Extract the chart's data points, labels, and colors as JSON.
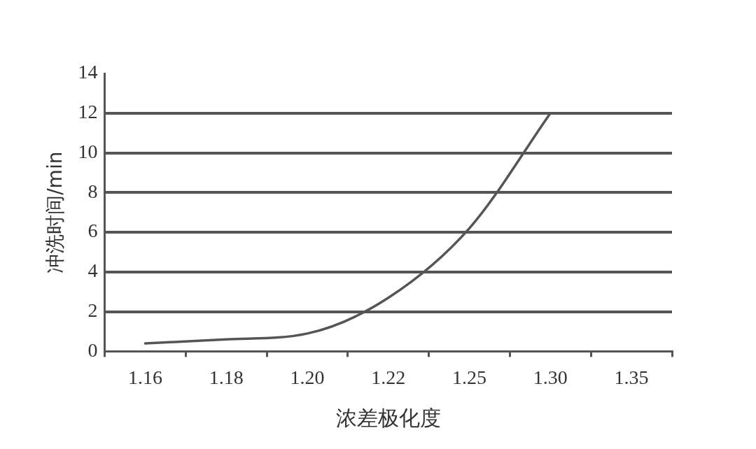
{
  "chart_data": {
    "type": "line",
    "xlabel": "浓差极化度",
    "ylabel": "冲洗时间/min",
    "categories": [
      "1.16",
      "1.18",
      "1.20",
      "1.22",
      "1.25",
      "1.30",
      "1.35"
    ],
    "series": [
      {
        "color": "#555555",
        "values": [
          0.4,
          0.6,
          0.9,
          2.7,
          6.2,
          12,
          null
        ]
      }
    ],
    "ylim": [
      0,
      14
    ],
    "yticks": [
      0,
      2,
      4,
      6,
      8,
      10,
      12,
      14
    ],
    "grid": "y",
    "legend": false,
    "marker": "none",
    "line_style": "solid"
  }
}
